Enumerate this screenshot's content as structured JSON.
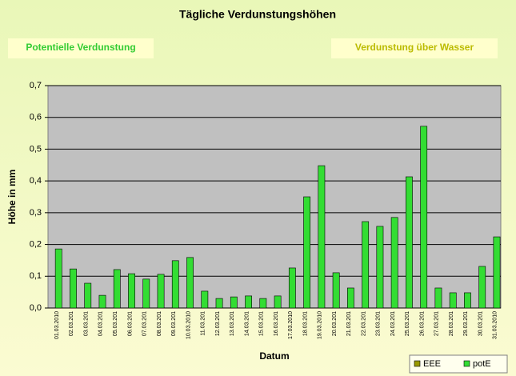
{
  "chart_data": {
    "type": "bar",
    "title": "Tägliche Verdunstungshöhen",
    "buttons": [
      "Potentielle Verdunstung",
      "Verdunstung über Wasser"
    ],
    "y_label": "Höhe in mm",
    "x_label": "Datum",
    "categories": [
      "01.03.2010",
      "02.03.201",
      "03.03.201",
      "04.03.201",
      "05.03.201",
      "06.03.201",
      "07.03.201",
      "08.03.201",
      "09.03.201",
      "10.03.2010",
      "11.03.201",
      "12.03.201",
      "13.03.201",
      "14.03.201",
      "15.03.201",
      "16.03.201",
      "17.03.2010",
      "18.03.201",
      "19.03.2010",
      "20.03.201",
      "21.03.201",
      "22.03.201",
      "23.03.201",
      "24.03.201",
      "25.03.201",
      "26.03.201",
      "27.03.201",
      "28.03.201",
      "29.03.201",
      "30.03.201",
      "31.03.2010"
    ],
    "series": [
      {
        "name": "EEE",
        "color": "#999900",
        "values": [
          null,
          null,
          null,
          null,
          null,
          null,
          null,
          null,
          null,
          null,
          null,
          null,
          null,
          null,
          null,
          null,
          null,
          null,
          null,
          null,
          null,
          null,
          null,
          null,
          null,
          null,
          null,
          null,
          null,
          null,
          null
        ]
      },
      {
        "name": "potE",
        "color": "#33dd33",
        "values": [
          0.186,
          0.123,
          0.078,
          0.04,
          0.121,
          0.108,
          0.091,
          0.106,
          0.149,
          0.159,
          0.053,
          0.03,
          0.035,
          0.038,
          0.03,
          0.038,
          0.126,
          0.35,
          0.448,
          0.111,
          0.063,
          0.272,
          0.257,
          0.285,
          0.413,
          0.572,
          0.063,
          0.048,
          0.048,
          0.131,
          0.224
        ]
      }
    ],
    "ylim": [
      0,
      0.7
    ],
    "yticks": [
      {
        "value": 0,
        "label": "0,0"
      },
      {
        "value": 0.1,
        "label": "0,1"
      },
      {
        "value": 0.2,
        "label": "0,2"
      },
      {
        "value": 0.3,
        "label": "0,3"
      },
      {
        "value": 0.4,
        "label": "0,4"
      },
      {
        "value": 0.5,
        "label": "0,5"
      },
      {
        "value": 0.6,
        "label": "0,6"
      },
      {
        "value": 0.7,
        "label": "0,7"
      }
    ],
    "grid": true,
    "legend": "bottom-right"
  }
}
